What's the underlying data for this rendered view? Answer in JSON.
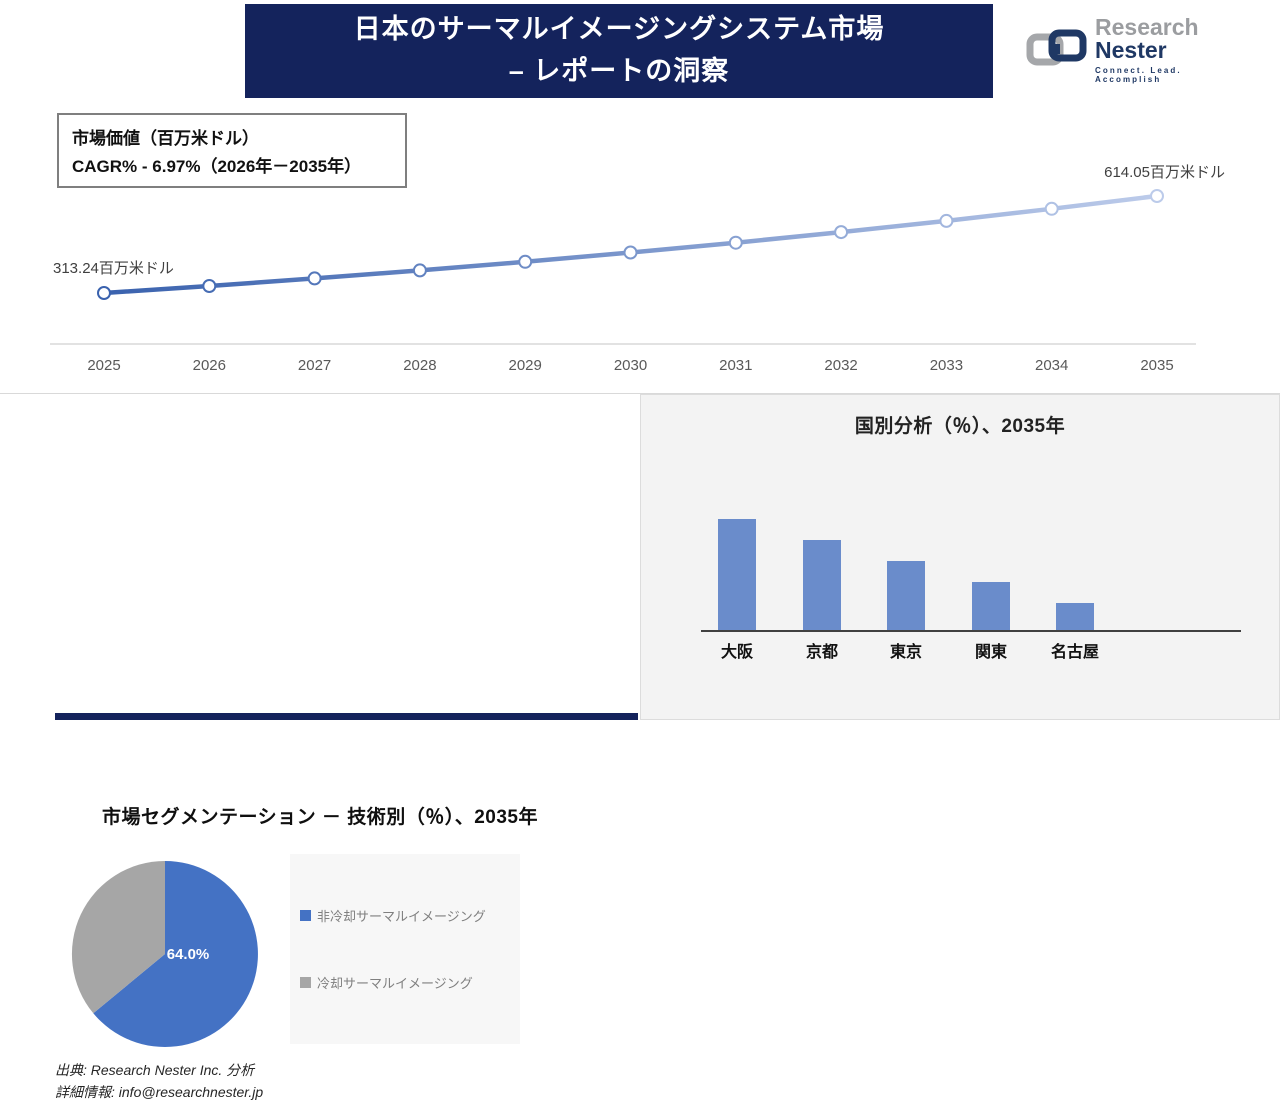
{
  "header": {
    "title_line1": "日本のサーマルイメージングシステム市場",
    "title_line2": "– レポートの洞察",
    "logo": {
      "name_part1": "Research",
      "name_part2": " Nester",
      "tagline": "Connect. Lead. Accomplish"
    }
  },
  "info_box": {
    "line1": "市場価値（百万米ドル）",
    "line2": "CAGR% - 6.97%（2026年－2035年）"
  },
  "chart_data": [
    {
      "type": "line",
      "title": "市場価値（百万米ドル）",
      "x": [
        2025,
        2026,
        2027,
        2028,
        2029,
        2030,
        2031,
        2032,
        2033,
        2034,
        2035
      ],
      "values": [
        313.24,
        335.07,
        358.42,
        383.4,
        410.12,
        438.7,
        469.27,
        501.97,
        536.95,
        574.37,
        614.05
      ],
      "first_point_label": "313.24百万米ドル",
      "last_point_label": "614.05百万米ドル",
      "cagr": "6.97%",
      "cagr_period": "2026年－2035年",
      "ylim": [
        280,
        660
      ],
      "grid": false,
      "legend_position": "none"
    },
    {
      "type": "pie",
      "title": "市場セグメンテーション － 技術別（％）、2035年",
      "labels": [
        "非冷却サーマルイメージング",
        "冷却サーマルイメージング"
      ],
      "values": [
        64.0,
        36.0
      ],
      "slice_label": "64.0%",
      "colors": [
        "#4472C4",
        "#A6A6A6"
      ],
      "legend_position": "right"
    },
    {
      "type": "bar",
      "title": "国別分析（％）、2035年",
      "categories": [
        "大阪",
        "京都",
        "東京",
        "関東",
        "名古屋"
      ],
      "values": [
        32,
        26,
        20,
        14,
        8
      ],
      "xlabel": "",
      "ylabel": "",
      "grid": false,
      "bar_color": "#6A8CCB"
    }
  ],
  "segmentation_section": {
    "title": "市場セグメンテーション － 技術別（％）、2035年",
    "legend": [
      {
        "label": "非冷却サーマルイメージング",
        "color": "#4472C4"
      },
      {
        "label": "冷却サーマルイメージング",
        "color": "#A6A6A6"
      }
    ]
  },
  "country_section": {
    "title": "国別分析（％）、2035年"
  },
  "source": {
    "line1": "出典: Research Nester Inc. 分析",
    "line2": "詳細情報: info@researchnester.jp"
  },
  "colors": {
    "navy": "#14235C",
    "line_blue_start": "#3A62AE",
    "line_blue_end": "#BCCBEA",
    "pie_blue": "#4472C4",
    "pie_gray": "#A6A6A6",
    "bar_blue": "#6A8CCB",
    "axis_gray": "#D9D9D9",
    "tick_text": "#595959",
    "point_label_text": "#404040"
  }
}
